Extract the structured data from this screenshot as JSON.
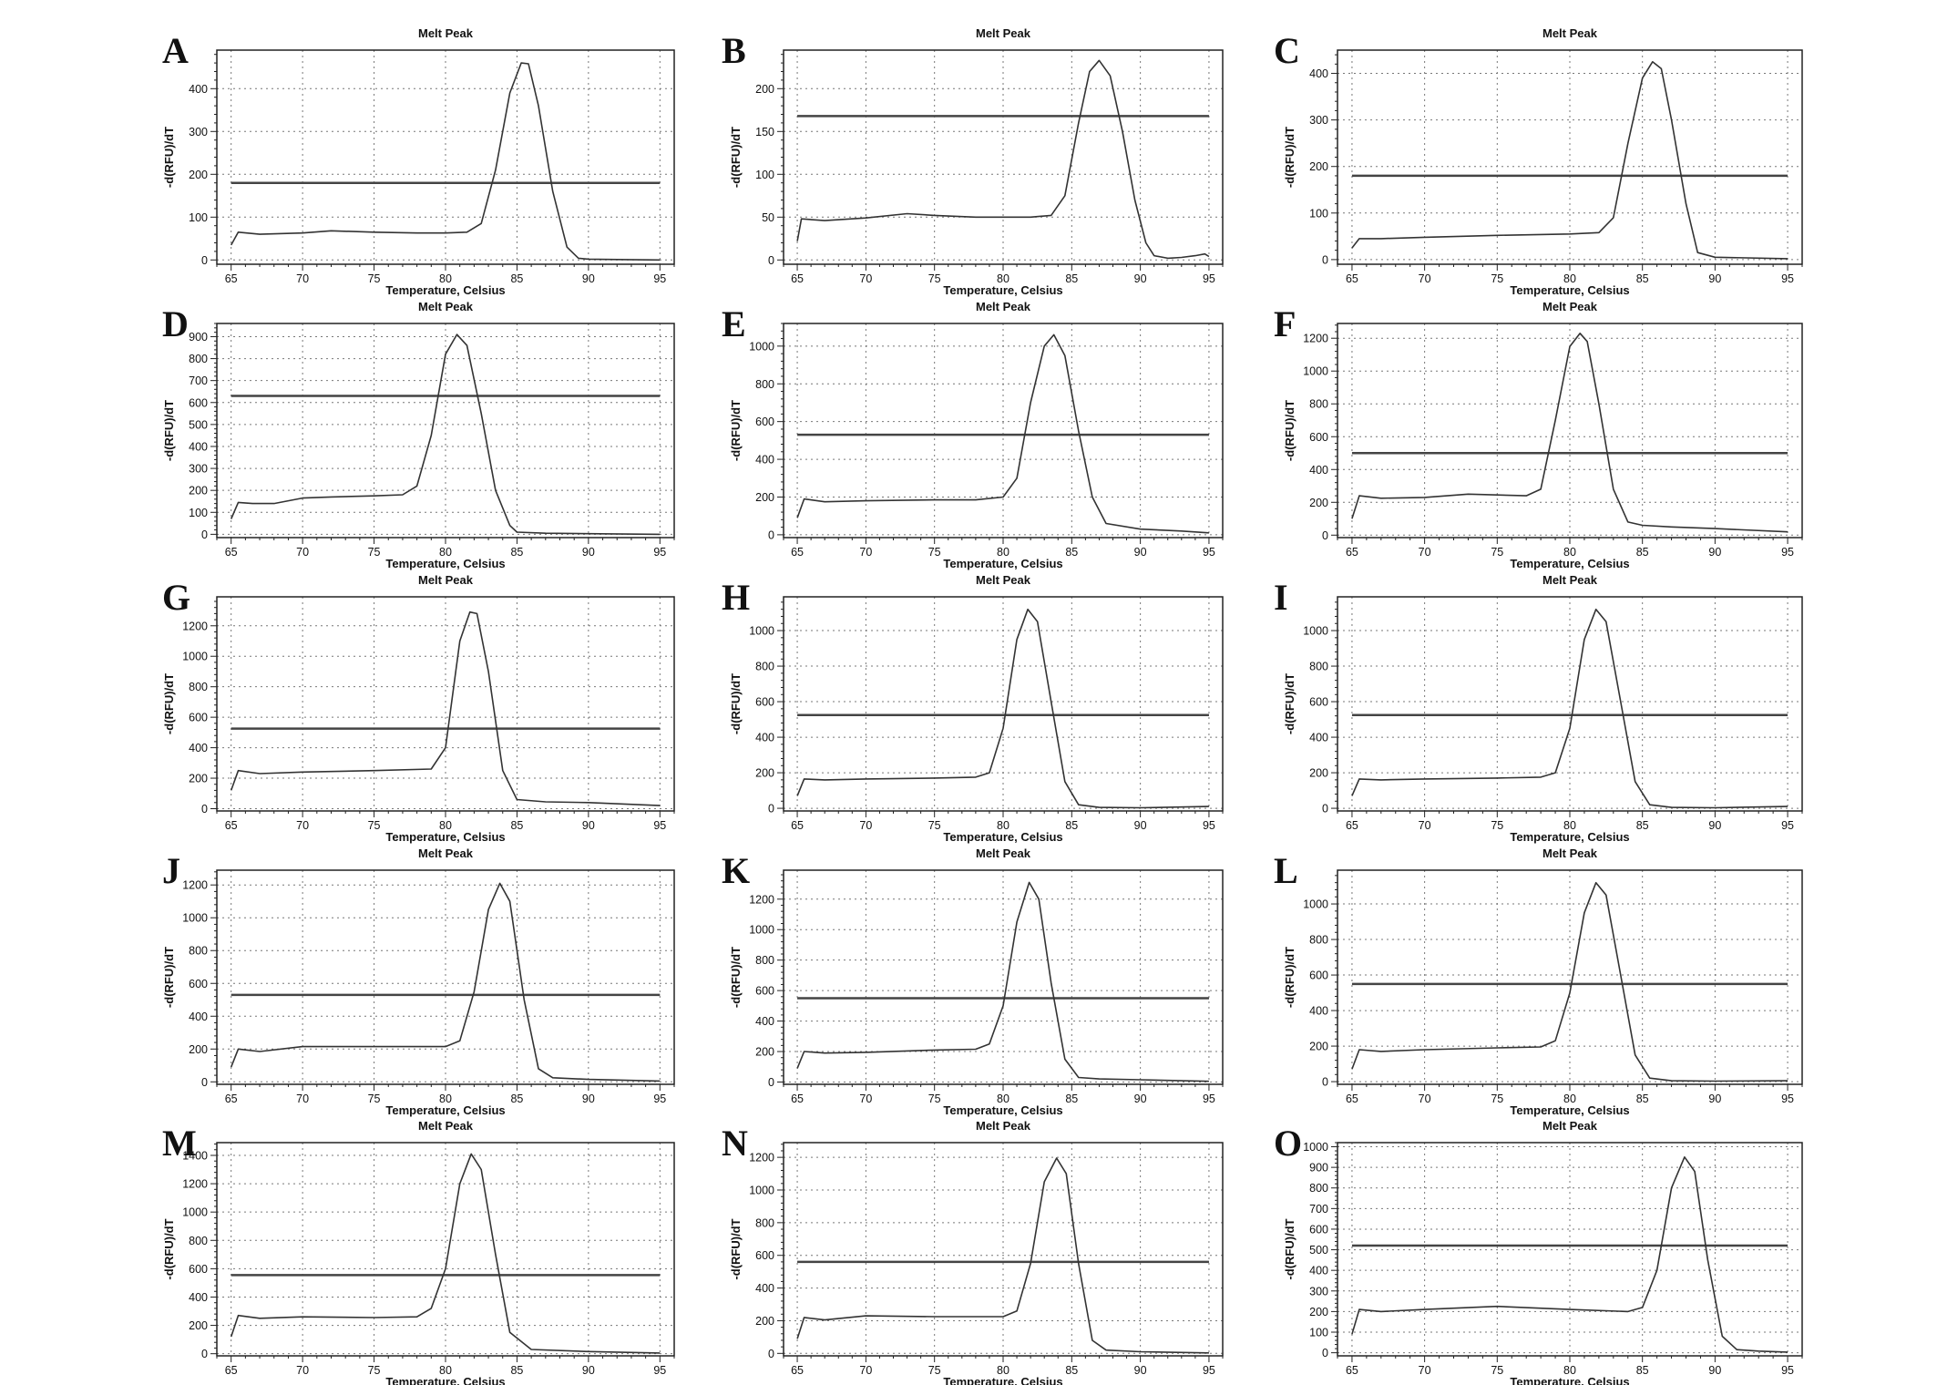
{
  "chart_data": [
    {
      "panel": "A",
      "type": "line",
      "title": "Melt Peak",
      "xlabel": "Temperature, Celsius",
      "ylabel": "-d(RFU)/dT",
      "xlim": [
        64,
        96
      ],
      "ylim": [
        -10,
        490
      ],
      "xticks": [
        65,
        70,
        75,
        80,
        85,
        90,
        95
      ],
      "yticks": [
        0,
        100,
        200,
        300,
        400
      ],
      "threshold": 180,
      "grid": true,
      "x": [
        65,
        65.5,
        67,
        70,
        72,
        75,
        78,
        80,
        81.5,
        82.5,
        83.5,
        84.5,
        85.3,
        85.8,
        86.5,
        87.5,
        88.5,
        89.3,
        90,
        92,
        95
      ],
      "y": [
        35,
        65,
        60,
        63,
        68,
        65,
        63,
        63,
        65,
        85,
        210,
        390,
        460,
        458,
        360,
        160,
        30,
        4,
        2,
        1,
        0
      ]
    },
    {
      "panel": "B",
      "type": "line",
      "title": "Melt Peak",
      "xlabel": "Temperature, Celsius",
      "ylabel": "-d(RFU)/dT",
      "xlim": [
        64,
        96
      ],
      "ylim": [
        -5,
        245
      ],
      "xticks": [
        65,
        70,
        75,
        80,
        85,
        90,
        95
      ],
      "yticks": [
        0,
        50,
        100,
        150,
        200
      ],
      "threshold": 168,
      "grid": true,
      "x": [
        65,
        65.3,
        67,
        70,
        73,
        75,
        78,
        80,
        82,
        83.5,
        84.5,
        85.5,
        86.3,
        87,
        87.8,
        88.7,
        89.6,
        90.4,
        91,
        92,
        93,
        94,
        94.7,
        95
      ],
      "y": [
        22,
        48,
        46,
        49,
        54,
        52,
        50,
        50,
        50,
        52,
        75,
        160,
        220,
        233,
        215,
        150,
        70,
        20,
        5,
        2,
        3,
        5,
        7,
        4
      ]
    },
    {
      "panel": "C",
      "type": "line",
      "title": "Melt Peak",
      "xlabel": "Temperature, Celsius",
      "ylabel": "-d(RFU)/dT",
      "xlim": [
        64,
        96
      ],
      "ylim": [
        -10,
        450
      ],
      "xticks": [
        65,
        70,
        75,
        80,
        85,
        90,
        95
      ],
      "yticks": [
        0,
        100,
        200,
        300,
        400
      ],
      "threshold": 180,
      "grid": true,
      "x": [
        65,
        65.5,
        67,
        70,
        75,
        80,
        82,
        83,
        84,
        85,
        85.7,
        86.3,
        87,
        88,
        88.8,
        90,
        95
      ],
      "y": [
        25,
        45,
        45,
        48,
        52,
        55,
        58,
        90,
        250,
        390,
        425,
        410,
        300,
        120,
        15,
        5,
        2
      ]
    },
    {
      "panel": "D",
      "type": "line",
      "title": "Melt Peak",
      "xlabel": "Temperature, Celsius",
      "ylabel": "-d(RFU)/dT",
      "xlim": [
        64,
        96
      ],
      "ylim": [
        -15,
        960
      ],
      "xticks": [
        65,
        70,
        75,
        80,
        85,
        90,
        95
      ],
      "yticks": [
        0,
        100,
        200,
        300,
        400,
        500,
        600,
        700,
        800,
        900
      ],
      "threshold": 630,
      "grid": true,
      "x": [
        65,
        65.5,
        66.5,
        68,
        70,
        72,
        75,
        77,
        78,
        79,
        80,
        80.8,
        81.5,
        82.5,
        83.5,
        84.5,
        85,
        87,
        90,
        95
      ],
      "y": [
        70,
        145,
        140,
        140,
        165,
        170,
        175,
        180,
        220,
        450,
        820,
        910,
        860,
        550,
        200,
        40,
        10,
        5,
        3,
        0
      ]
    },
    {
      "panel": "E",
      "type": "line",
      "title": "Melt Peak",
      "xlabel": "Temperature, Celsius",
      "ylabel": "-d(RFU)/dT",
      "xlim": [
        64,
        96
      ],
      "ylim": [
        -15,
        1120
      ],
      "xticks": [
        65,
        70,
        75,
        80,
        85,
        90,
        95
      ],
      "yticks": [
        0,
        200,
        400,
        600,
        800,
        1000
      ],
      "threshold": 530,
      "grid": true,
      "x": [
        65,
        65.5,
        67,
        70,
        75,
        78,
        80,
        81,
        82,
        83,
        83.7,
        84.5,
        85.5,
        86.5,
        87.5,
        90,
        93,
        95
      ],
      "y": [
        90,
        190,
        175,
        180,
        185,
        185,
        200,
        300,
        700,
        1000,
        1060,
        950,
        550,
        200,
        60,
        30,
        20,
        10
      ]
    },
    {
      "panel": "F",
      "type": "line",
      "title": "Melt Peak",
      "xlabel": "Temperature, Celsius",
      "ylabel": "-d(RFU)/dT",
      "xlim": [
        64,
        96
      ],
      "ylim": [
        -15,
        1290
      ],
      "xticks": [
        65,
        70,
        75,
        80,
        85,
        90,
        95
      ],
      "yticks": [
        0,
        200,
        400,
        600,
        800,
        1000,
        1200
      ],
      "threshold": 500,
      "grid": true,
      "x": [
        65,
        65.5,
        67,
        70,
        73,
        75,
        77,
        78,
        79,
        80,
        80.7,
        81.2,
        82,
        83,
        84,
        85,
        87,
        90,
        95
      ],
      "y": [
        100,
        240,
        225,
        230,
        250,
        245,
        240,
        280,
        700,
        1150,
        1230,
        1180,
        800,
        280,
        80,
        60,
        50,
        40,
        20
      ]
    },
    {
      "panel": "G",
      "type": "line",
      "title": "Melt Peak",
      "xlabel": "Temperature, Celsius",
      "ylabel": "-d(RFU)/dT",
      "xlim": [
        64,
        96
      ],
      "ylim": [
        -15,
        1390
      ],
      "xticks": [
        65,
        70,
        75,
        80,
        85,
        90,
        95
      ],
      "yticks": [
        0,
        200,
        400,
        600,
        800,
        1000,
        1200
      ],
      "threshold": 525,
      "grid": true,
      "x": [
        65,
        65.5,
        67,
        70,
        75,
        79,
        80,
        81,
        81.7,
        82.2,
        83,
        84,
        85,
        87,
        90,
        95
      ],
      "y": [
        120,
        250,
        230,
        240,
        250,
        260,
        400,
        1100,
        1290,
        1280,
        900,
        250,
        60,
        45,
        40,
        20
      ]
    },
    {
      "panel": "H",
      "type": "line",
      "title": "Melt Peak",
      "xlabel": "Temperature, Celsius",
      "ylabel": "-d(RFU)/dT",
      "xlim": [
        64,
        96
      ],
      "ylim": [
        -15,
        1190
      ],
      "xticks": [
        65,
        70,
        75,
        80,
        85,
        90,
        95
      ],
      "yticks": [
        0,
        200,
        400,
        600,
        800,
        1000
      ],
      "threshold": 525,
      "grid": true,
      "x": [
        65,
        65.5,
        67,
        70,
        75,
        78,
        79,
        80,
        81,
        81.8,
        82.5,
        83.5,
        84.5,
        85.5,
        87,
        90,
        95
      ],
      "y": [
        70,
        165,
        160,
        165,
        170,
        175,
        200,
        450,
        950,
        1120,
        1050,
        600,
        150,
        20,
        5,
        3,
        10
      ]
    },
    {
      "panel": "I",
      "type": "line",
      "title": "Melt Peak",
      "xlabel": "Temperature, Celsius",
      "ylabel": "-d(RFU)/dT",
      "xlim": [
        64,
        96
      ],
      "ylim": [
        -15,
        1190
      ],
      "xticks": [
        65,
        70,
        75,
        80,
        85,
        90,
        95
      ],
      "yticks": [
        0,
        200,
        400,
        600,
        800,
        1000
      ],
      "threshold": 525,
      "grid": true,
      "x": [
        65,
        65.5,
        67,
        70,
        75,
        78,
        79,
        80,
        81,
        81.8,
        82.5,
        83.5,
        84.5,
        85.5,
        87,
        90,
        95
      ],
      "y": [
        70,
        165,
        160,
        165,
        170,
        175,
        200,
        450,
        950,
        1120,
        1050,
        600,
        150,
        20,
        5,
        3,
        10
      ]
    },
    {
      "panel": "J",
      "type": "line",
      "title": "Melt Peak",
      "xlabel": "Temperature, Celsius",
      "ylabel": "-d(RFU)/dT",
      "xlim": [
        64,
        96
      ],
      "ylim": [
        -15,
        1290
      ],
      "xticks": [
        65,
        70,
        75,
        80,
        85,
        90,
        95
      ],
      "yticks": [
        0,
        200,
        400,
        600,
        800,
        1000,
        1200
      ],
      "threshold": 530,
      "grid": true,
      "x": [
        65,
        65.5,
        67,
        70,
        75,
        80,
        81,
        82,
        83,
        83.8,
        84.5,
        85.5,
        86.5,
        87.5,
        90,
        95
      ],
      "y": [
        90,
        200,
        185,
        215,
        215,
        215,
        250,
        550,
        1050,
        1210,
        1100,
        500,
        80,
        25,
        15,
        5
      ]
    },
    {
      "panel": "K",
      "type": "line",
      "title": "Melt Peak",
      "xlabel": "Temperature, Celsius",
      "ylabel": "-d(RFU)/dT",
      "xlim": [
        64,
        96
      ],
      "ylim": [
        -15,
        1390
      ],
      "xticks": [
        65,
        70,
        75,
        80,
        85,
        90,
        95
      ],
      "yticks": [
        0,
        200,
        400,
        600,
        800,
        1000,
        1200
      ],
      "threshold": 550,
      "grid": true,
      "x": [
        65,
        65.5,
        67,
        70,
        75,
        78,
        79,
        80,
        81,
        81.9,
        82.6,
        83.5,
        84.5,
        85.5,
        87,
        90,
        95
      ],
      "y": [
        90,
        200,
        190,
        195,
        210,
        215,
        250,
        500,
        1050,
        1310,
        1200,
        650,
        150,
        30,
        20,
        15,
        5
      ]
    },
    {
      "panel": "L",
      "type": "line",
      "title": "Melt Peak",
      "xlabel": "Temperature, Celsius",
      "ylabel": "-d(RFU)/dT",
      "xlim": [
        64,
        96
      ],
      "ylim": [
        -15,
        1190
      ],
      "xticks": [
        65,
        70,
        75,
        80,
        85,
        90,
        95
      ],
      "yticks": [
        0,
        200,
        400,
        600,
        800,
        1000
      ],
      "threshold": 550,
      "grid": true,
      "x": [
        65,
        65.5,
        67,
        70,
        75,
        78,
        79,
        80,
        81,
        81.8,
        82.5,
        83.5,
        84.5,
        85.5,
        87,
        90,
        95
      ],
      "y": [
        70,
        180,
        170,
        180,
        190,
        195,
        230,
        500,
        950,
        1120,
        1050,
        600,
        150,
        20,
        5,
        3,
        5
      ]
    },
    {
      "panel": "M",
      "type": "line",
      "title": "Melt Peak",
      "xlabel": "Temperature, Celsius",
      "ylabel": "-d(RFU)/dT",
      "xlim": [
        64,
        96
      ],
      "ylim": [
        -15,
        1490
      ],
      "xticks": [
        65,
        70,
        75,
        80,
        85,
        90,
        95
      ],
      "yticks": [
        0,
        200,
        400,
        600,
        800,
        1000,
        1200,
        1400
      ],
      "threshold": 555,
      "grid": true,
      "x": [
        65,
        65.5,
        67,
        70,
        75,
        78,
        79,
        80,
        81,
        81.8,
        82.5,
        83.5,
        84.5,
        86,
        90,
        95
      ],
      "y": [
        120,
        270,
        250,
        260,
        255,
        260,
        320,
        600,
        1200,
        1410,
        1300,
        700,
        150,
        30,
        15,
        5
      ]
    },
    {
      "panel": "N",
      "type": "line",
      "title": "Melt Peak",
      "xlabel": "Temperature, Celsius",
      "ylabel": "-d(RFU)/dT",
      "xlim": [
        64,
        96
      ],
      "ylim": [
        -15,
        1290
      ],
      "xticks": [
        65,
        70,
        75,
        80,
        85,
        90,
        95
      ],
      "yticks": [
        0,
        200,
        400,
        600,
        800,
        1000,
        1200
      ],
      "threshold": 560,
      "grid": true,
      "x": [
        65,
        65.5,
        67,
        70,
        75,
        80,
        81,
        82,
        83,
        83.9,
        84.6,
        85.5,
        86.5,
        87.5,
        90,
        95
      ],
      "y": [
        90,
        220,
        205,
        230,
        225,
        225,
        260,
        550,
        1050,
        1195,
        1100,
        550,
        80,
        20,
        10,
        3
      ]
    },
    {
      "panel": "O",
      "type": "line",
      "title": "Melt Peak",
      "xlabel": "Temperature, Celsius",
      "ylabel": "-d(RFU)/dT",
      "xlim": [
        64,
        96
      ],
      "ylim": [
        -15,
        1020
      ],
      "xticks": [
        65,
        70,
        75,
        80,
        85,
        90,
        95
      ],
      "yticks": [
        0,
        100,
        200,
        300,
        400,
        500,
        600,
        700,
        800,
        900,
        1000
      ],
      "threshold": 520,
      "grid": true,
      "x": [
        65,
        65.5,
        67,
        70,
        75,
        80,
        84,
        85,
        86,
        87,
        87.9,
        88.6,
        89.5,
        90.5,
        91.5,
        93,
        95
      ],
      "y": [
        90,
        210,
        200,
        210,
        225,
        210,
        200,
        220,
        400,
        800,
        950,
        880,
        450,
        80,
        15,
        8,
        3
      ]
    }
  ]
}
